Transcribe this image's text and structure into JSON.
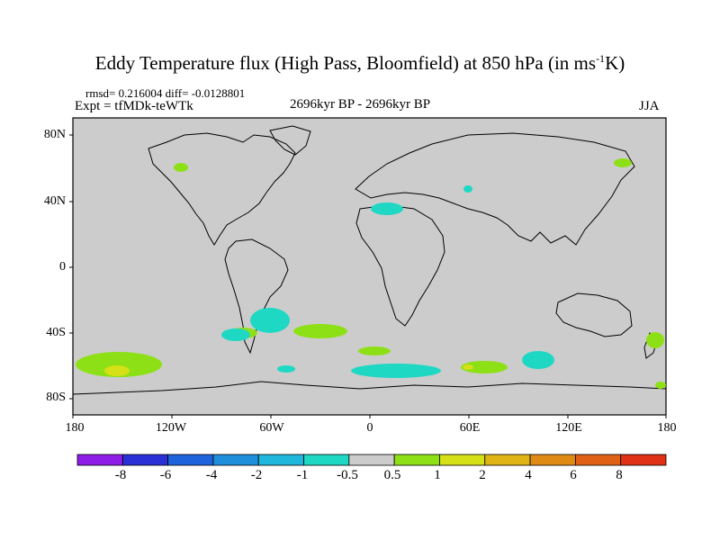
{
  "header": {
    "title_main": "Eddy Temperature flux (High Pass, Bloomfield) at 850 hPa (in ms",
    "title_sup": "-1",
    "title_end": "K)",
    "stats": "rmsd= 0.216004 diff= -0.0128801",
    "expt": "Expt = tfMDk-teWTk",
    "period": "2696kyr BP - 2696kyr BP",
    "season": "JJA"
  },
  "axes": {
    "lat_labels": [
      "80N",
      "40N",
      "0",
      "40S",
      "80S"
    ],
    "lon_labels": [
      "180",
      "120W",
      "60W",
      "0",
      "60E",
      "120E",
      "180"
    ]
  },
  "colorbar": {
    "labels": [
      "-8",
      "-6",
      "-4",
      "-2",
      "-1",
      "-0.5",
      "0.5",
      "1",
      "2",
      "4",
      "6",
      "8"
    ],
    "colors": [
      "#8e1de8",
      "#2b2fd6",
      "#1e63db",
      "#1f8fdc",
      "#1fb8dc",
      "#1fd8c4",
      "#cccccc",
      "#8ee016",
      "#d6e016",
      "#e0b416",
      "#e08a16",
      "#e06016",
      "#e03016"
    ]
  },
  "colors": {
    "land_background": "#cccccc",
    "positive_small": "#8ee016",
    "positive_mid": "#d6e016",
    "negative_small": "#1fd8c4"
  }
}
